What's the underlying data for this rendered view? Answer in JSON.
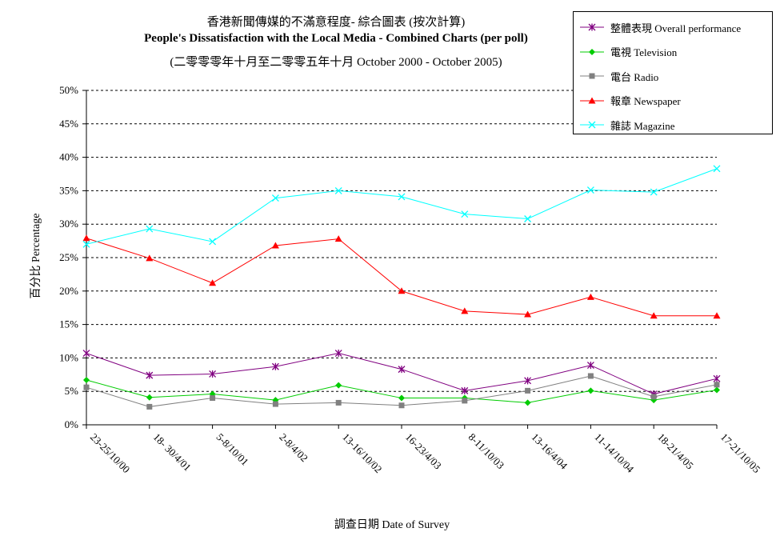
{
  "chart_data": {
    "type": "line",
    "title": "香港新聞傳媒的不滿意程度- 綜合圖表 (按次計算)",
    "subtitle": "People's Dissatisfaction with the Local Media - Combined Charts (per poll)",
    "subtitle2": "(二零零零年十月至二零零五年十月 October 2000 - October 2005)",
    "xlabel": "調查日期 Date of Survey",
    "ylabel": "百分比 Percentage",
    "ylim": [
      0,
      50
    ],
    "yticks": [
      "0%",
      "5%",
      "10%",
      "15%",
      "20%",
      "25%",
      "30%",
      "35%",
      "40%",
      "45%",
      "50%"
    ],
    "categories": [
      "23-25/10/00",
      "18- 30/4/01",
      "5-8/10/01",
      "2-8/4/02",
      "13-16/10/02",
      "16-23/4/03",
      "8-11/10/03",
      "13-16/4/04",
      "11-14/10/04",
      "18-21/4/05",
      "17-21/10/05"
    ],
    "legend_position": "top-right",
    "grid": "horizontal dashed",
    "series": [
      {
        "name": "整體表現 Overall performance",
        "color": "#800080",
        "marker": "star",
        "values": [
          10.7,
          7.4,
          7.6,
          8.7,
          10.7,
          8.3,
          5.1,
          6.6,
          8.9,
          4.6,
          6.9
        ]
      },
      {
        "name": "電視 Television",
        "color": "#00cc00",
        "marker": "diamond",
        "values": [
          6.7,
          4.1,
          4.6,
          3.7,
          5.9,
          4.0,
          4.0,
          3.3,
          5.1,
          3.7,
          5.2
        ]
      },
      {
        "name": "電台 Radio",
        "color": "#808080",
        "marker": "square",
        "values": [
          5.6,
          2.7,
          4.0,
          3.1,
          3.3,
          2.9,
          3.6,
          5.1,
          7.3,
          4.2,
          6.0
        ]
      },
      {
        "name": "報章 Newspaper",
        "color": "#ff0000",
        "marker": "triangle",
        "values": [
          27.9,
          24.9,
          21.2,
          26.8,
          27.8,
          20.0,
          17.0,
          16.5,
          19.1,
          16.3,
          16.3
        ]
      },
      {
        "name": "雜誌 Magazine",
        "color": "#00ffff",
        "marker": "x",
        "values": [
          27.0,
          29.3,
          27.4,
          33.9,
          35.0,
          34.1,
          31.5,
          30.8,
          35.1,
          34.8,
          38.3
        ]
      }
    ]
  }
}
